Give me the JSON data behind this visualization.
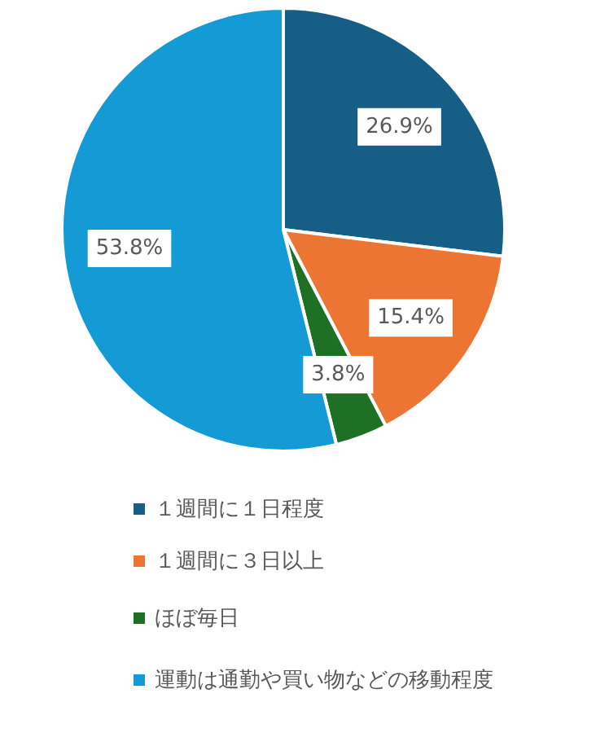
{
  "chart_data": {
    "type": "pie",
    "categories": [
      "１週間に１日程度",
      "１週間に３日以上",
      "ほぼ毎日",
      "運動は通勤や買い物などの移動程度"
    ],
    "values": [
      26.9,
      15.4,
      3.8,
      53.8
    ],
    "colors": [
      "#175e87",
      "#ec7533",
      "#1e7025",
      "#149bd6"
    ],
    "value_labels": [
      "26.9%",
      "15.4%",
      "3.8%",
      "53.8%"
    ],
    "legend": "bottom"
  }
}
